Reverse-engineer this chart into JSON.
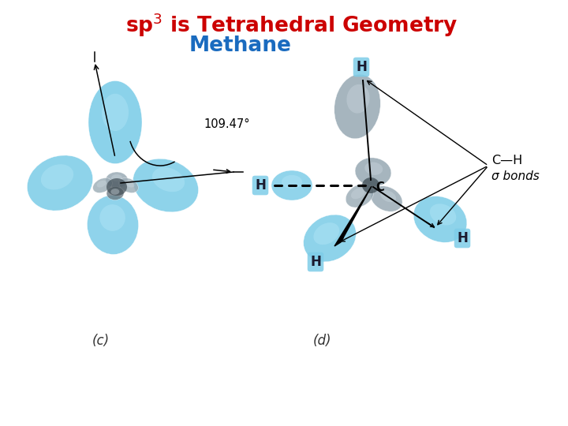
{
  "title_line1": "sp$^3$ is Tetrahedral Geometry",
  "title_line2": "Methane",
  "title_color": "#cc0000",
  "title2_color": "#1a6bbf",
  "angle_label": "109.47°",
  "label_c": "(c)",
  "label_d": "(d)",
  "ch_bonds_label": "C—H",
  "sigma_label": "σ bonds",
  "bg_color": "#ffffff",
  "cyan_outer": "#7ecde8",
  "cyan_light": "#b8e8f8",
  "cyan_mid": "#5ab8e0",
  "gray_outer": "#9aabb5",
  "gray_light": "#ccd8e0",
  "gray_dark": "#6a7880",
  "center_dark": "#3a4850"
}
